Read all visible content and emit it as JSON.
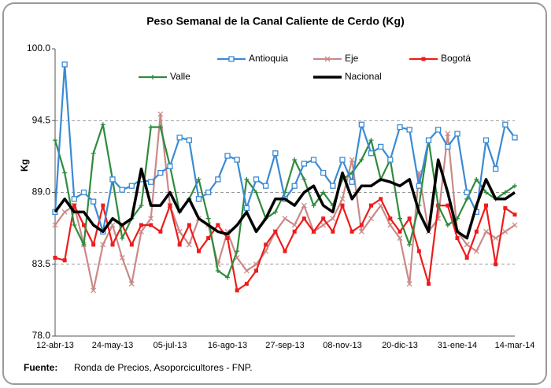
{
  "chart_data": {
    "type": "line",
    "title": "Peso Semanal de la Canal Caliente de Cerdo (Kg)",
    "y_label": "Kg",
    "categories": [
      "12-abr-13",
      null,
      null,
      null,
      null,
      null,
      "24-may-13",
      null,
      null,
      null,
      null,
      null,
      "05-jul-13",
      null,
      null,
      null,
      null,
      null,
      "16-ago-13",
      null,
      null,
      null,
      null,
      null,
      "27-sep-13",
      null,
      null,
      null,
      null,
      null,
      "08-nov-13",
      null,
      null,
      null,
      null,
      null,
      "20-dic-13",
      null,
      null,
      null,
      null,
      null,
      "31-ene-14",
      null,
      null,
      null,
      null,
      null,
      "14-mar-14"
    ],
    "series": [
      {
        "name": "Antioquia",
        "color": "#3a8ad4",
        "marker": "square-open",
        "values": [
          87.5,
          98.8,
          88.5,
          89.0,
          88.3,
          86.0,
          90.0,
          89.2,
          89.5,
          90.0,
          89.8,
          90.5,
          91.0,
          93.2,
          93.0,
          88.5,
          89.0,
          90.0,
          91.8,
          91.5,
          87.8,
          90.0,
          89.5,
          92.0,
          88.5,
          89.5,
          91.2,
          91.5,
          90.5,
          89.5,
          91.5,
          89.8,
          94.2,
          92.0,
          92.5,
          91.5,
          94.0,
          93.8,
          89.5,
          93.0,
          93.8,
          92.5,
          93.5,
          89.0,
          87.5,
          93.0,
          90.8,
          94.2,
          93.2
        ]
      },
      {
        "name": "Eje",
        "color": "#c98a88",
        "marker": "x",
        "values": [
          86.5,
          87.5,
          88.0,
          85.0,
          81.5,
          85.0,
          86.5,
          84.0,
          82.0,
          86.0,
          87.0,
          95.0,
          88.0,
          86.0,
          85.0,
          87.0,
          86.5,
          83.5,
          86.0,
          84.0,
          83.0,
          83.5,
          84.5,
          86.0,
          87.0,
          86.5,
          88.0,
          86.0,
          86.5,
          87.0,
          88.5,
          91.5,
          86.0,
          87.0,
          88.0,
          86.5,
          85.5,
          82.0,
          90.5,
          86.0,
          87.0,
          93.5,
          86.0,
          85.0,
          84.5,
          86.0,
          85.5,
          86.0,
          86.5
        ]
      },
      {
        "name": "Bogotá",
        "color": "#ee1c1c",
        "marker": "square",
        "values": [
          84.0,
          83.8,
          88.0,
          86.5,
          85.0,
          88.0,
          85.0,
          86.5,
          85.0,
          86.5,
          86.5,
          86.0,
          88.0,
          85.0,
          86.5,
          84.5,
          85.5,
          86.5,
          85.5,
          81.5,
          82.0,
          83.0,
          85.0,
          86.0,
          84.5,
          86.0,
          87.0,
          86.0,
          87.0,
          86.0,
          88.0,
          86.0,
          86.5,
          88.0,
          88.5,
          87.0,
          86.0,
          87.0,
          84.5,
          82.0,
          88.0,
          88.0,
          85.5,
          84.0,
          86.0,
          88.0,
          83.5,
          87.8,
          87.3
        ]
      },
      {
        "name": "Valle",
        "color": "#2e8b3c",
        "marker": "plus",
        "values": [
          93.0,
          90.5,
          86.5,
          85.0,
          92.0,
          94.2,
          90.0,
          85.5,
          87.0,
          88.0,
          94.0,
          94.0,
          91.0,
          87.5,
          88.5,
          90.0,
          87.0,
          83.0,
          82.5,
          84.5,
          90.0,
          89.0,
          87.0,
          87.5,
          89.0,
          91.5,
          90.0,
          88.0,
          89.0,
          88.0,
          90.0,
          90.5,
          91.5,
          93.0,
          90.0,
          91.5,
          87.0,
          85.0,
          88.0,
          93.0,
          88.0,
          86.5,
          87.0,
          88.5,
          90.0,
          89.0,
          88.5,
          89.0,
          89.5
        ]
      },
      {
        "name": "Nacional",
        "color": "#000000",
        "marker": "none",
        "values": [
          87.5,
          88.5,
          87.5,
          87.5,
          86.5,
          86.0,
          87.0,
          86.5,
          87.0,
          90.8,
          88.0,
          88.0,
          89.0,
          87.5,
          88.5,
          87.0,
          86.5,
          86.0,
          85.8,
          86.5,
          87.5,
          86.0,
          87.0,
          88.5,
          88.5,
          88.0,
          89.0,
          89.5,
          88.0,
          87.5,
          90.5,
          88.5,
          89.5,
          89.5,
          90.0,
          89.8,
          89.5,
          90.0,
          87.5,
          86.0,
          91.5,
          89.0,
          86.0,
          85.5,
          88.0,
          90.0,
          88.5,
          88.5,
          89.0
        ]
      }
    ],
    "ylim": [
      78,
      100
    ],
    "yticks": [
      {
        "value": 78,
        "label": "78.0"
      },
      {
        "value": 83.5,
        "label": "83.5"
      },
      {
        "value": 89,
        "label": "89.0"
      },
      {
        "value": 94.5,
        "label": "94.5"
      },
      {
        "value": 100,
        "label": "100.0"
      }
    ],
    "grid": true,
    "source_label": "Fuente:",
    "source_text": "Ronda de Precios, Asoporcicultores  - FNP."
  }
}
